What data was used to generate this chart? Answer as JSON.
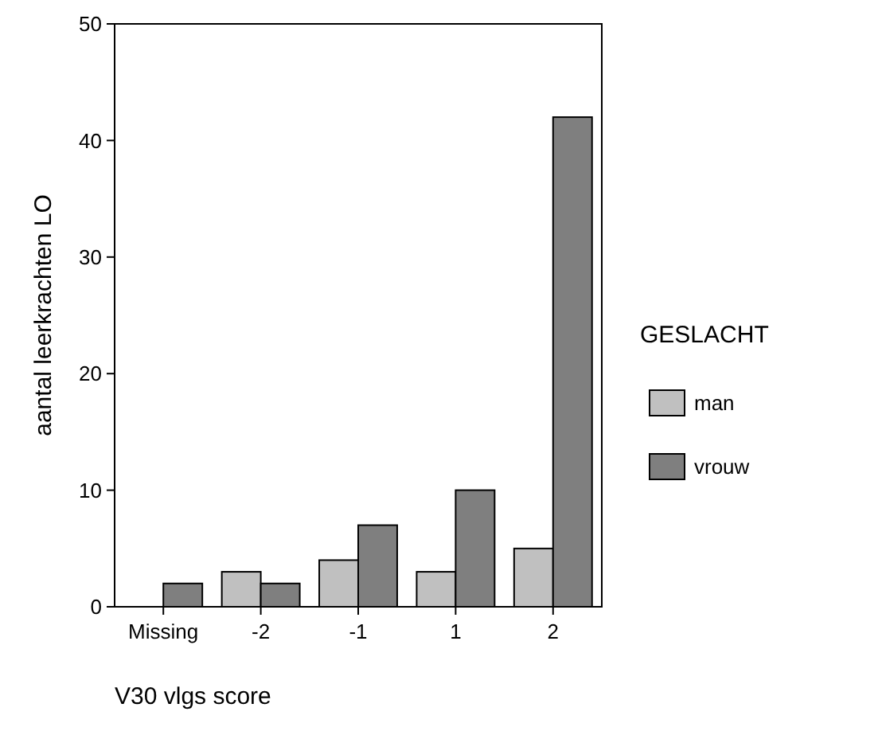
{
  "chart_data": {
    "type": "bar",
    "xlabel": "V30 vlgs score",
    "ylabel": "aantal leerkrachten LO",
    "legend_title": "GESLACHT",
    "categories": [
      "Missing",
      "-2",
      "-1",
      "1",
      "2"
    ],
    "series": [
      {
        "name": "man",
        "color": "#c0c0c0",
        "values": [
          0,
          3,
          4,
          3,
          5
        ]
      },
      {
        "name": "vrouw",
        "color": "#7f7f7f",
        "values": [
          2,
          2,
          7,
          10,
          42
        ]
      }
    ],
    "ylim": [
      0,
      50
    ],
    "yticks": [
      0,
      10,
      20,
      30,
      40,
      50
    ],
    "grid": false,
    "legend": "right"
  }
}
